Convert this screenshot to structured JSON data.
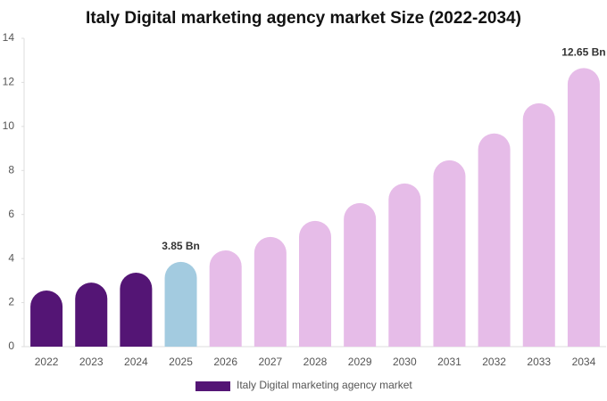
{
  "chart_data": {
    "type": "bar",
    "title": "Italy Digital marketing agency market Size (2022-2034)",
    "categories": [
      "2022",
      "2023",
      "2024",
      "2025",
      "2026",
      "2027",
      "2028",
      "2029",
      "2030",
      "2031",
      "2032",
      "2033",
      "2034"
    ],
    "series": [
      {
        "name": "Italy Digital marketing agency market",
        "color": "#541575",
        "values": [
          2.55,
          2.91,
          3.36,
          3.85,
          4.37,
          4.98,
          5.71,
          6.52,
          7.41,
          8.46,
          9.68,
          11.05,
          12.65
        ],
        "value_labels": [
          null,
          null,
          null,
          "3.85 Bn",
          null,
          null,
          null,
          null,
          null,
          null,
          null,
          null,
          "12.65 Bn"
        ],
        "colors": [
          "#541575",
          "#541575",
          "#541575",
          "#a3cbe0",
          "#e6bce8",
          "#e6bce8",
          "#e6bce8",
          "#e6bce8",
          "#e6bce8",
          "#e6bce8",
          "#e6bce8",
          "#e6bce8",
          "#e6bce8"
        ]
      }
    ],
    "ylim": [
      0,
      14
    ],
    "yticks": [
      0,
      2,
      4,
      6,
      8,
      10,
      12,
      14
    ],
    "grid": false
  }
}
